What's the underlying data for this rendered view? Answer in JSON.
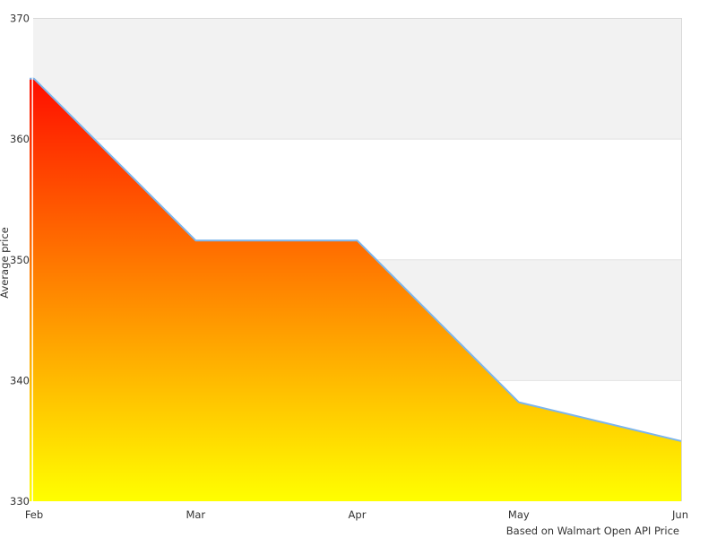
{
  "chart": {
    "y_axis_title": "Average price",
    "caption": "Based on Walmart Open API Price",
    "colors": {
      "background": "#ffffff",
      "band": "#f2f2f2",
      "gridline": "#e2e2e2",
      "border": "#d9d9d9",
      "line": "#7cb5ec",
      "gradient_top": "#ff0000",
      "gradient_bottom": "#ffff00",
      "label": "#333333",
      "axis_overlay_line": "#ffffff"
    }
  },
  "chart_data": {
    "type": "area",
    "title": "",
    "xlabel": "",
    "ylabel": "Average price",
    "categories": [
      "Feb",
      "Mar",
      "Apr",
      "May",
      "Jun"
    ],
    "values": [
      365,
      351.6,
      351.6,
      338.2,
      335
    ],
    "ylim": [
      330,
      370
    ],
    "yticks": [
      330,
      340,
      350,
      360,
      370
    ],
    "grid": "alternating horizontal bands, gray from 370-360 and 350-340",
    "legend": "none",
    "area_gradient": [
      "#ff0000",
      "#ffff00"
    ],
    "line_color": "#7cb5ec",
    "caption": "Based on Walmart Open API Price"
  }
}
